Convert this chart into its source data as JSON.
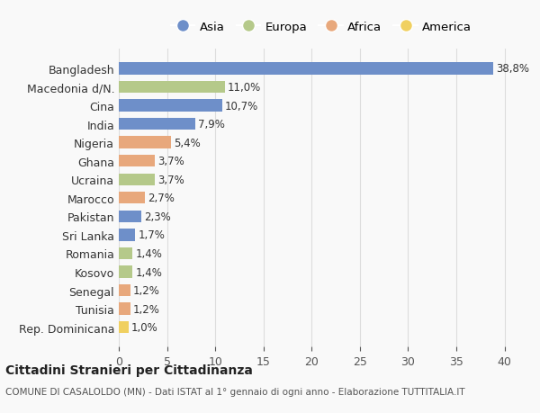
{
  "countries": [
    "Bangladesh",
    "Macedonia d/N.",
    "Cina",
    "India",
    "Nigeria",
    "Ghana",
    "Ucraina",
    "Marocco",
    "Pakistan",
    "Sri Lanka",
    "Romania",
    "Kosovo",
    "Senegal",
    "Tunisia",
    "Rep. Dominicana"
  ],
  "values": [
    38.8,
    11.0,
    10.7,
    7.9,
    5.4,
    3.7,
    3.7,
    2.7,
    2.3,
    1.7,
    1.4,
    1.4,
    1.2,
    1.2,
    1.0
  ],
  "labels": [
    "38,8%",
    "11,0%",
    "10,7%",
    "7,9%",
    "5,4%",
    "3,7%",
    "3,7%",
    "2,7%",
    "2,3%",
    "1,7%",
    "1,4%",
    "1,4%",
    "1,2%",
    "1,2%",
    "1,0%"
  ],
  "continents": [
    "Asia",
    "Europa",
    "Asia",
    "Asia",
    "Africa",
    "Africa",
    "Europa",
    "Africa",
    "Asia",
    "Asia",
    "Europa",
    "Europa",
    "Africa",
    "Africa",
    "America"
  ],
  "continent_colors": {
    "Asia": "#6e8fc9",
    "Europa": "#b5c98a",
    "Africa": "#e8a87c",
    "America": "#f0d060"
  },
  "legend_order": [
    "Asia",
    "Europa",
    "Africa",
    "America"
  ],
  "xlim": [
    0,
    42
  ],
  "xticks": [
    0,
    5,
    10,
    15,
    20,
    25,
    30,
    35,
    40
  ],
  "title": "Cittadini Stranieri per Cittadinanza",
  "subtitle": "COMUNE DI CASALOLDO (MN) - Dati ISTAT al 1° gennaio di ogni anno - Elaborazione TUTTITALIA.IT",
  "bg_color": "#f9f9f9",
  "grid_color": "#dddddd",
  "bar_height": 0.65
}
